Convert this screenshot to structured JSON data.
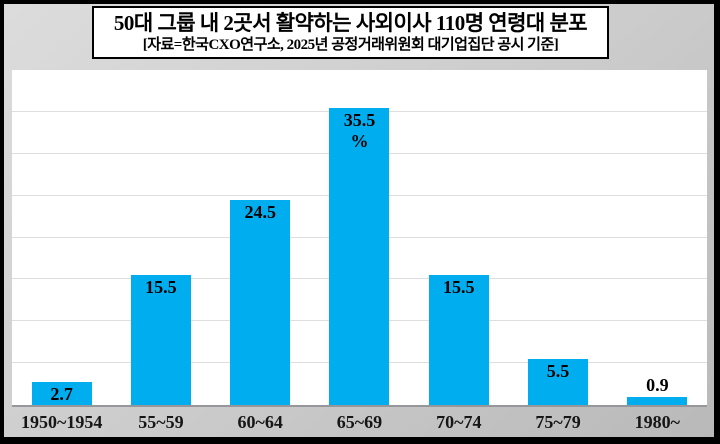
{
  "chart_data": {
    "type": "bar",
    "title": "50대 그룹 내 2곳서 활약하는 사외이사 110명 연령대 분포",
    "subtitle": "[자료=한국CXO연구소, 2025년 공정거래위원회 대기업집단 공시 기준]",
    "categories": [
      "1950~1954",
      "55~59",
      "60~64",
      "65~69",
      "70~74",
      "75~79",
      "1980~"
    ],
    "values": [
      2.7,
      15.5,
      24.5,
      35.5,
      15.5,
      5.5,
      0.9
    ],
    "value_labels": [
      [
        "2.7"
      ],
      [
        "15.5"
      ],
      [
        "24.5"
      ],
      [
        "35.5",
        "%"
      ],
      [
        "15.5"
      ],
      [
        "5.5"
      ],
      [
        "0.9"
      ]
    ],
    "label_inside": [
      true,
      true,
      true,
      true,
      true,
      true,
      false
    ],
    "xlabel": "",
    "ylabel": "",
    "ylim": [
      0,
      40
    ],
    "grid_step": 5,
    "grid": true,
    "legend": false,
    "bar_color": "#00aeef"
  }
}
